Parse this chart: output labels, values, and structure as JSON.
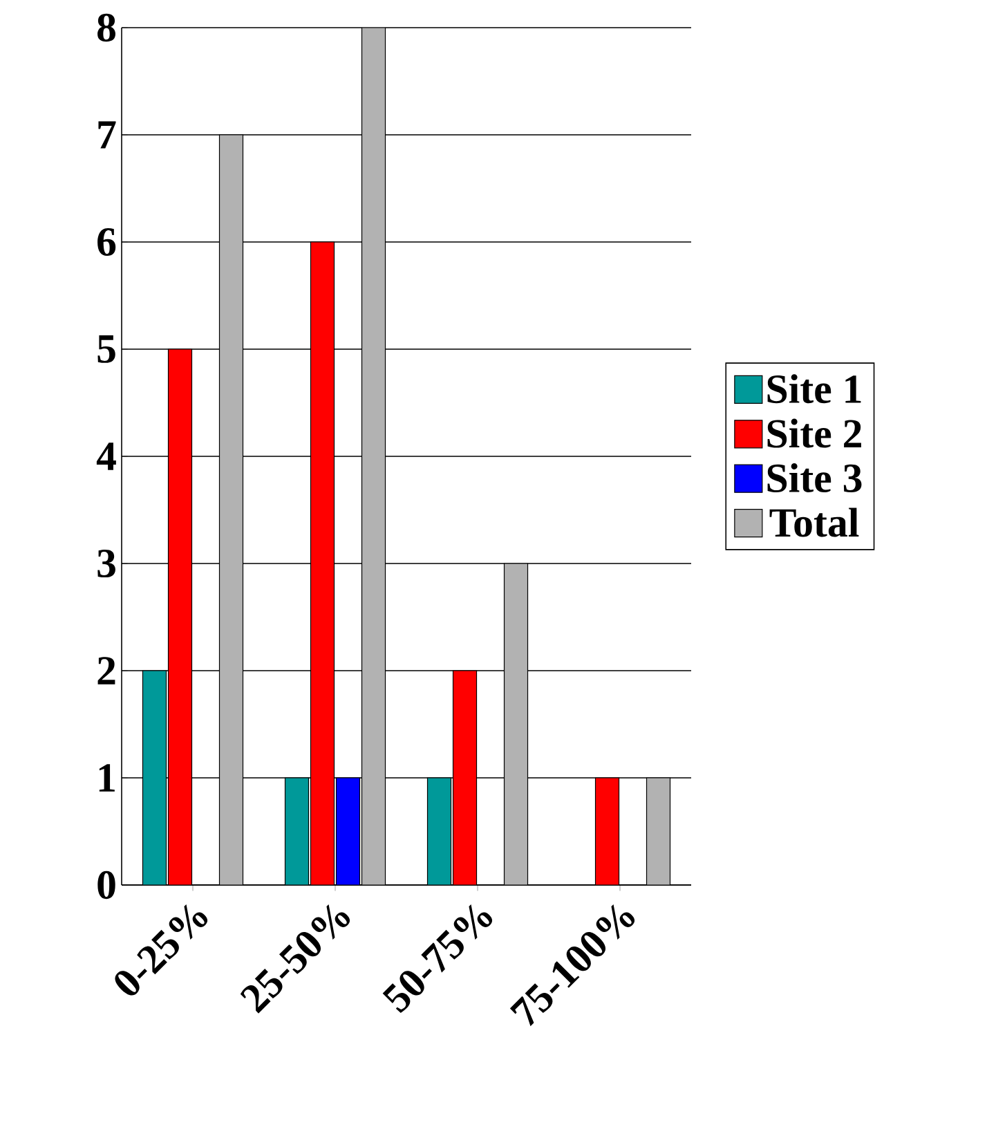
{
  "chart_data": {
    "type": "bar",
    "categories": [
      "0-25%",
      "25-50%",
      "50-75%",
      "75-100%"
    ],
    "series": [
      {
        "name": "Site 1",
        "color": "#009999",
        "values": [
          2,
          1,
          1,
          0
        ]
      },
      {
        "name": "Site 2",
        "color": "#ff0000",
        "values": [
          5,
          6,
          2,
          1
        ]
      },
      {
        "name": "Site 3",
        "color": "#0000ff",
        "values": [
          0,
          1,
          0,
          0
        ]
      },
      {
        "name": "Total",
        "color": "#b2b2b2",
        "values": [
          7,
          8,
          3,
          1
        ]
      }
    ],
    "ylim": [
      0,
      8
    ],
    "yticks": [
      0,
      1,
      2,
      3,
      4,
      5,
      6,
      7,
      8
    ],
    "grid": "y",
    "legend": "right"
  }
}
